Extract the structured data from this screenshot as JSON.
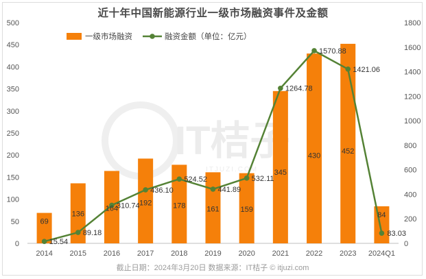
{
  "chart_data": {
    "type": "bar",
    "title": "近十年中国新能源行业一级市场融资事件及金额",
    "categories": [
      "2014",
      "2015",
      "2016",
      "2017",
      "2018",
      "2019",
      "2020",
      "2021",
      "2022",
      "2023",
      "2024Q1"
    ],
    "series": [
      {
        "name": "一级市场融资",
        "type": "bar",
        "axis": "left",
        "color": "#f5800a",
        "values": [
          69,
          136,
          164,
          192,
          178,
          161,
          159,
          345,
          430,
          452,
          84
        ],
        "labels": [
          "69",
          "136",
          "164",
          "192",
          "178",
          "161",
          "159",
          "345",
          "430",
          "452",
          "84"
        ]
      },
      {
        "name": "融资金额（单位：亿元）",
        "type": "line",
        "axis": "right",
        "color": "#548235",
        "values": [
          15.54,
          89.18,
          310.74,
          436.1,
          524.52,
          441.89,
          532.11,
          1264.78,
          1570.88,
          1421.06,
          83.03
        ],
        "labels": [
          "15.54",
          "89.18",
          "310.74",
          "436.10",
          "524.52",
          "441.89",
          "532.11",
          "1264.78",
          "1570.88",
          "1421.06",
          "83.03"
        ]
      }
    ],
    "y_left": {
      "min": 0,
      "max": 500,
      "ticks": [
        0,
        50,
        100,
        150,
        200,
        250,
        300,
        350,
        400,
        450,
        500
      ]
    },
    "y_right": {
      "min": 0,
      "max": 1800,
      "ticks": [
        0,
        200,
        400,
        600,
        800,
        1000,
        1200,
        1400,
        1600,
        1800
      ]
    },
    "grid": false,
    "legend_position": "top-left",
    "footer": "截止日期：2024年3月20日    数据来源：IT桔子 © itjuzi.com",
    "watermark": "IT桔子",
    "watermark_small": "ITJUZI.COM"
  }
}
